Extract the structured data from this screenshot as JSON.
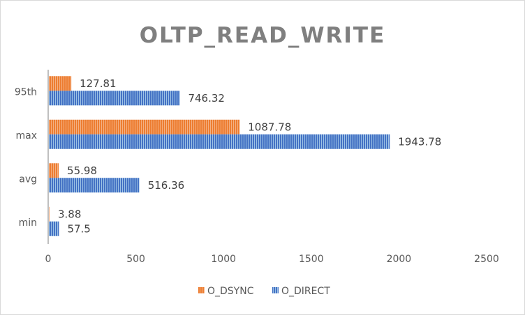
{
  "chart_data": {
    "type": "bar",
    "orientation": "horizontal",
    "title": "OLTP_READ_WRITE",
    "categories": [
      "95th",
      "max",
      "avg",
      "min"
    ],
    "series": [
      {
        "name": "O_DSYNC",
        "values": [
          127.81,
          1087.78,
          55.98,
          3.88
        ],
        "color": "#ed7d31",
        "pattern": "vertical-stripes"
      },
      {
        "name": "O_DIRECT",
        "values": [
          746.32,
          1943.78,
          516.36,
          57.5
        ],
        "color": "#4472c4",
        "pattern": "vertical-stripes"
      }
    ],
    "data_labels": {
      "O_DSYNC": [
        "127.81",
        "1087.78",
        "55.98",
        "3.88"
      ],
      "O_DIRECT": [
        "746.32",
        "1943.78",
        "516.36",
        "57.5"
      ]
    },
    "xlim": [
      0,
      2500
    ],
    "xticks": [
      0,
      500,
      1000,
      1500,
      2000,
      2500
    ],
    "xtick_labels": [
      "0",
      "500",
      "1000",
      "1500",
      "2000",
      "2500"
    ],
    "grid": false,
    "legend_position": "bottom"
  }
}
